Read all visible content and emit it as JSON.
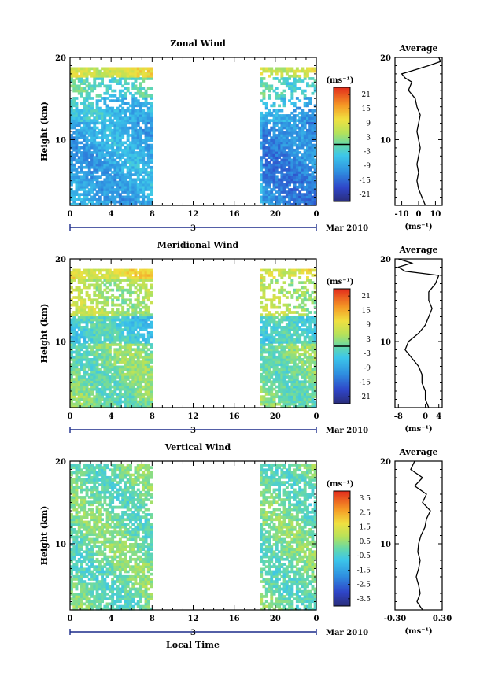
{
  "figure": {
    "xlabel": "Local Time",
    "date_label": "Mar 2010",
    "day_label": "3"
  },
  "chart_data": [
    {
      "type": "heatmap",
      "title": "Zonal Wind",
      "ylabel": "Height (km)",
      "xlabel": "Local Time",
      "x_ticks": [
        "0",
        "4",
        "8",
        "12",
        "16",
        "20",
        "0"
      ],
      "y_ticks": [
        "10",
        "20"
      ],
      "xlim": [
        0,
        24
      ],
      "ylim": [
        2,
        20
      ],
      "data_gap_hours": [
        8,
        18.5
      ],
      "colorbar": {
        "unit": "(ms⁻¹)",
        "ticks": [
          "21",
          "15",
          "9",
          "3",
          "-3",
          "-9",
          "-15",
          "-21"
        ],
        "range": [
          -24,
          24
        ],
        "zero_line": true
      },
      "side_profile": {
        "title": "Average",
        "x_ticks": [
          "-10",
          "0",
          "10"
        ],
        "xlabel": "(ms⁻¹)",
        "xlim": [
          -14,
          14
        ],
        "y_ticks": [
          "10",
          "20"
        ],
        "height_km": [
          2,
          3,
          4,
          5,
          6,
          7,
          8,
          9,
          10,
          11,
          12,
          13,
          14,
          15,
          16,
          17,
          17.5,
          18,
          18.5,
          19,
          19.5,
          20
        ],
        "values": [
          4,
          2,
          0,
          -1,
          0,
          -1,
          0,
          1,
          0,
          -1,
          0,
          1,
          -1,
          -2,
          -6,
          -4,
          -8,
          -10,
          -2,
          6,
          13,
          12
        ]
      }
    },
    {
      "type": "heatmap",
      "title": "Meridional Wind",
      "ylabel": "Height (km)",
      "xlabel": "Local Time",
      "x_ticks": [
        "0",
        "4",
        "8",
        "12",
        "16",
        "20",
        "0"
      ],
      "y_ticks": [
        "10",
        "20"
      ],
      "xlim": [
        0,
        24
      ],
      "ylim": [
        2,
        20
      ],
      "data_gap_hours": [
        8,
        18.5
      ],
      "colorbar": {
        "unit": "(ms⁻¹)",
        "ticks": [
          "21",
          "15",
          "9",
          "3",
          "-3",
          "-9",
          "-15",
          "-21"
        ],
        "range": [
          -24,
          24
        ],
        "zero_line": true
      },
      "side_profile": {
        "title": "Average",
        "x_ticks": [
          "-8",
          "0",
          "4"
        ],
        "xlabel": "(ms⁻¹)",
        "xlim": [
          -9,
          5
        ],
        "y_ticks": [
          "10",
          "20"
        ],
        "height_km": [
          2,
          3,
          4,
          5,
          6,
          7,
          8,
          9,
          10,
          11,
          12,
          13,
          14,
          15,
          16,
          17,
          18,
          18.5,
          19,
          19.5,
          20
        ],
        "values": [
          1,
          0,
          0,
          -1,
          -1,
          -2,
          -4,
          -6,
          -5,
          -2,
          0,
          1,
          2,
          1,
          1,
          3,
          4,
          -6,
          -8,
          -4,
          -8
        ]
      }
    },
    {
      "type": "heatmap",
      "title": "Vertical Wind",
      "ylabel": "Height (km)",
      "xlabel": "Local Time",
      "x_ticks": [
        "0",
        "4",
        "8",
        "12",
        "16",
        "20",
        "0"
      ],
      "y_ticks": [
        "10",
        "20"
      ],
      "xlim": [
        0,
        24
      ],
      "ylim": [
        2,
        20
      ],
      "data_gap_hours": [
        8,
        18.5
      ],
      "colorbar": {
        "unit": "(ms⁻¹)",
        "ticks": [
          "3.5",
          "2.5",
          "1.5",
          "0.5",
          "-0.5",
          "-1.5",
          "-2.5",
          "-3.5"
        ],
        "range": [
          -4,
          4
        ],
        "zero_line": false
      },
      "side_profile": {
        "title": "Average",
        "x_ticks": [
          "-0.30",
          "0.30"
        ],
        "xlabel": "(ms⁻¹)",
        "xlim": [
          -0.3,
          0.3
        ],
        "y_ticks": [
          "10",
          "20"
        ],
        "height_km": [
          2,
          3,
          4,
          5,
          6,
          7,
          8,
          9,
          10,
          11,
          12,
          13,
          14,
          15,
          16,
          17,
          18,
          19,
          20
        ],
        "values": [
          0.05,
          -0.02,
          0.02,
          0.0,
          -0.03,
          0.0,
          0.02,
          -0.01,
          0.0,
          0.03,
          0.08,
          0.1,
          0.15,
          0.05,
          0.1,
          -0.05,
          0.05,
          -0.1,
          -0.05
        ]
      }
    }
  ]
}
